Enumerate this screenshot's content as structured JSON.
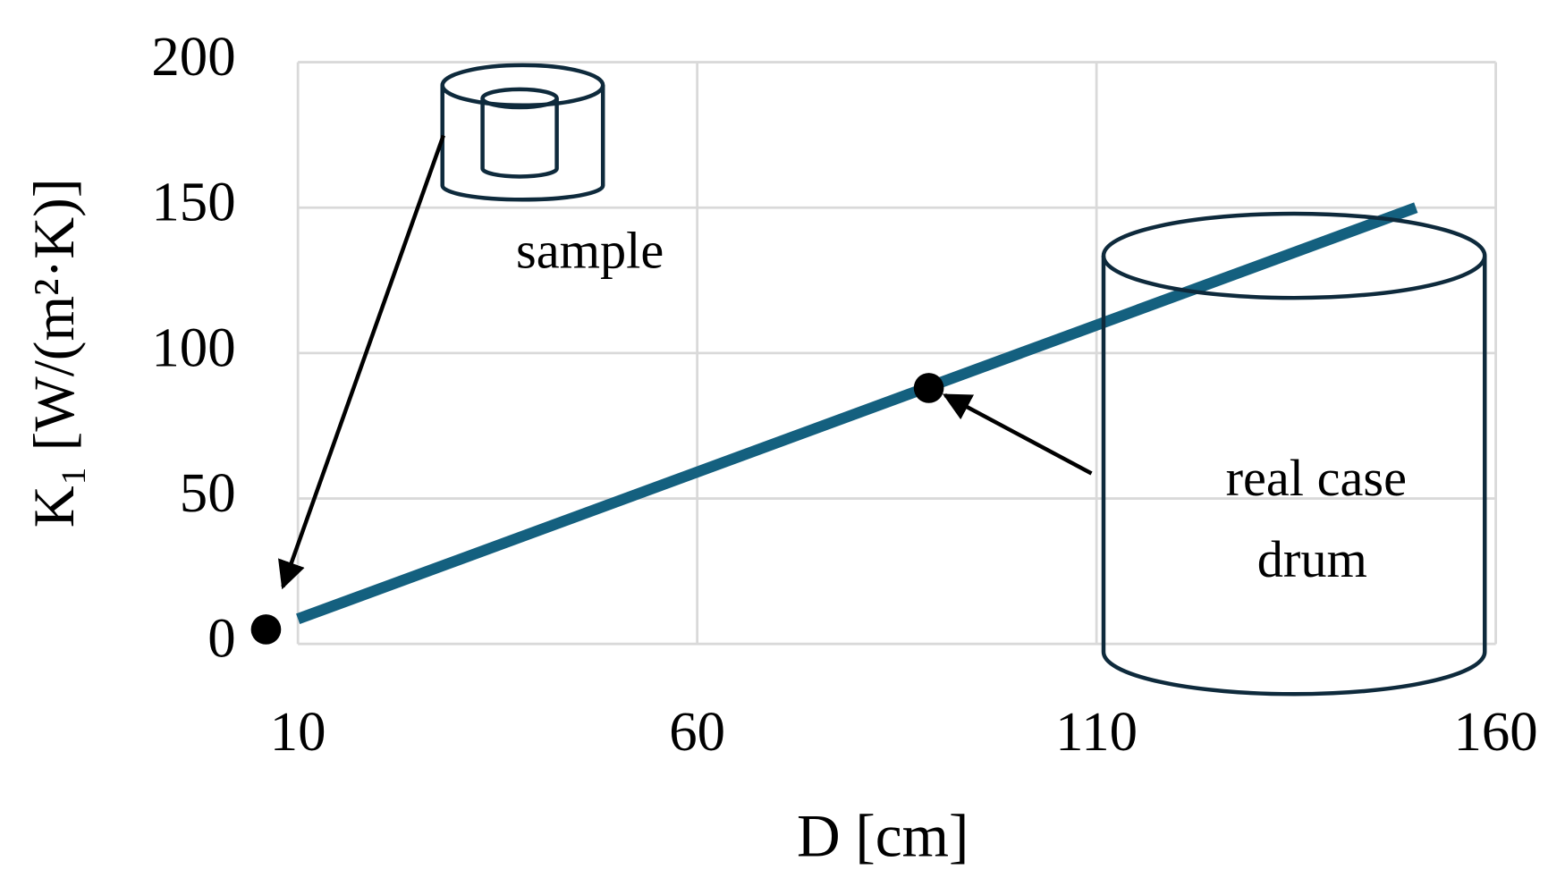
{
  "chart_data": {
    "type": "line",
    "x_label": "D [cm]",
    "y_label": "K₁ [W/(m²·K)]",
    "xlim": [
      10,
      160
    ],
    "xticks": [
      10,
      60,
      110,
      160
    ],
    "ylim": [
      0,
      200
    ],
    "yticks": [
      0,
      50,
      100,
      150,
      200
    ],
    "grid": true,
    "series": [
      {
        "color": "#14607f",
        "x": [
          10,
          150
        ],
        "values": [
          8.6,
          150
        ]
      },
      {
        "color": "#000000",
        "x": [
          6,
          89
        ],
        "values": [
          5,
          88
        ],
        "marker": "point"
      }
    ],
    "annotations": [
      "sample",
      "real case",
      "drum"
    ]
  }
}
